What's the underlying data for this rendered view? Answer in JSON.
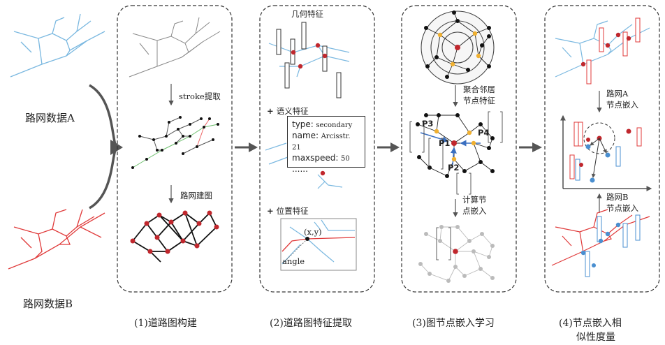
{
  "inputs": {
    "network_a": "路网数据A",
    "network_b": "路网数据B"
  },
  "panel1": {
    "stroke_step": "stroke提取",
    "graph_step": "路网建图",
    "caption": "(1)道路图构建"
  },
  "panel2": {
    "geometric": "几何特征",
    "semantic": "语义特征",
    "position": "位置特征",
    "attrs": [
      {
        "key": "type:",
        "value": "secondary"
      },
      {
        "key": "name:",
        "value": "Arcisstr. 21"
      },
      {
        "key": "maxspeed:",
        "value": "50"
      },
      {
        "key": "......",
        "value": ""
      }
    ],
    "point_label": "(x,y)",
    "angle_label": "angle",
    "caption": "(2)道路图特征提取"
  },
  "panel3": {
    "aggregate_line1": "聚合邻居",
    "aggregate_line2": "节点特征",
    "compute_line1": "计算节",
    "compute_line2": "点嵌入",
    "nodes": [
      "P1",
      "P2",
      "P3",
      "P4"
    ],
    "caption": "(3)图节点嵌入学习"
  },
  "panel4": {
    "embed_a_line1": "路网A",
    "embed_a_line2": "节点嵌入",
    "embed_b_line1": "路网B",
    "embed_b_line2": "节点嵌入",
    "caption_line1": "(4)节点嵌入相",
    "caption_line2": "似性度量"
  },
  "colors": {
    "network_a": "#7ab8e0",
    "network_b": "#e03a3a",
    "node_red": "#c0272d",
    "node_orange": "#f0b030",
    "node_blue": "#4a8fd0",
    "arrow": "#555555"
  }
}
